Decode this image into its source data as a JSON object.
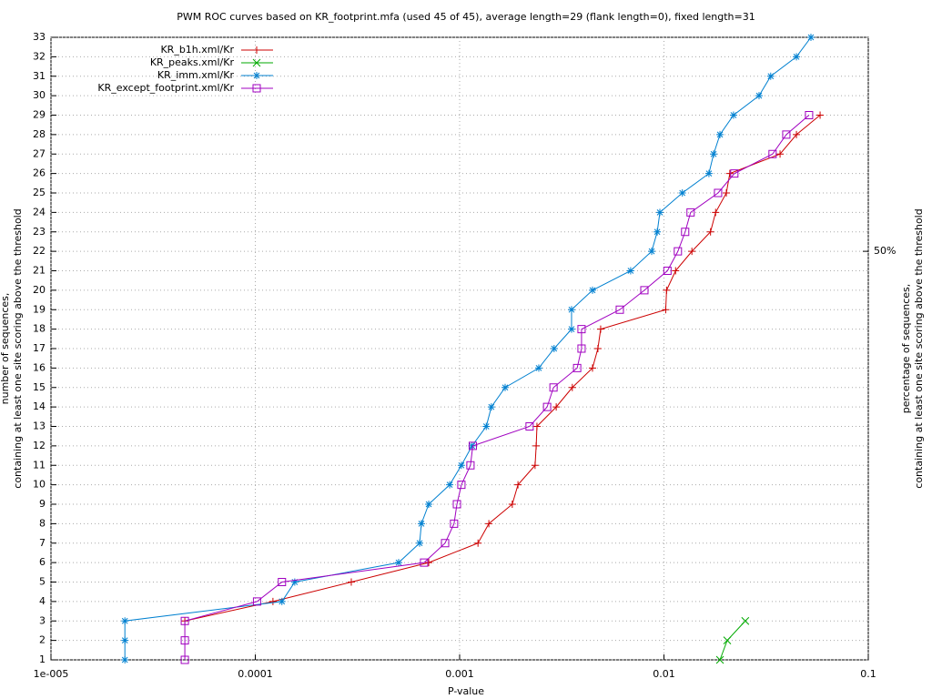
{
  "chart_data": {
    "type": "line",
    "title": "PWM ROC curves based on KR_footprint.mfa (used 45 of 45), average length=29 (flank length=0), fixed length=31",
    "xlabel": "P-value",
    "ylabel": [
      "number of sequences,",
      "containing at least one site scoring above the threshold"
    ],
    "y2label": [
      "percentage of sequences,",
      "containing at least one site scoring above the threshold"
    ],
    "xscale": "log",
    "grid": true,
    "legend": "upper left",
    "xlim": [
      1e-05,
      0.1
    ],
    "xticks": [
      {
        "value": 1e-05,
        "label": "1e-005"
      },
      0.0001,
      0.001,
      0.01,
      0.1
    ],
    "ylim": [
      1,
      33
    ],
    "yticks": [
      1,
      2,
      3,
      4,
      5,
      6,
      7,
      8,
      9,
      10,
      11,
      12,
      13,
      14,
      15,
      16,
      17,
      18,
      19,
      20,
      21,
      22,
      23,
      24,
      25,
      26,
      27,
      28,
      29,
      30,
      31,
      32,
      33
    ],
    "y2lim": [
      2.27,
      75
    ],
    "y2ticks": [
      {
        "value": 50,
        "label": "50%"
      }
    ],
    "series": [
      {
        "name": "KR_b1h.xml/Kr",
        "color": "#cc0000",
        "marker": "plus",
        "x": [
          4.52e-05,
          0.000122,
          0.000295,
          0.000706,
          0.00123,
          0.00139,
          0.00181,
          0.00193,
          0.00234,
          0.00237,
          0.00239,
          0.00297,
          0.00356,
          0.00447,
          0.00475,
          0.0049,
          0.0102,
          0.0103,
          0.0114,
          0.0137,
          0.0169,
          0.0179,
          0.0202,
          0.021,
          0.037,
          0.0445,
          0.0581
        ],
        "values": [
          3,
          4,
          5,
          6,
          7,
          8,
          9,
          10,
          11,
          12,
          13,
          14,
          15,
          16,
          17,
          18,
          19,
          20,
          21,
          22,
          23,
          24,
          25,
          26,
          27,
          28,
          29
        ]
      },
      {
        "name": "KR_peaks.xml/Kr",
        "color": "#00aa00",
        "marker": "cross",
        "x": [
          0.0188,
          0.0204,
          0.025
        ],
        "values": [
          1,
          2,
          3
        ]
      },
      {
        "name": "KR_imm.xml/Kr",
        "color": "#0080d0",
        "marker": "star",
        "x": [
          2.3e-05,
          2.3e-05,
          2.3e-05,
          0.000135,
          0.000156,
          0.000503,
          0.000637,
          0.00065,
          0.000706,
          0.000894,
          0.00102,
          0.00115,
          0.00135,
          0.00143,
          0.00167,
          0.00244,
          0.0029,
          0.00353,
          0.00353,
          0.00447,
          0.00687,
          0.00871,
          0.00927,
          0.00955,
          0.0123,
          0.0166,
          0.0175,
          0.0188,
          0.0219,
          0.0292,
          0.0333,
          0.0445,
          0.0524
        ],
        "values": [
          1,
          2,
          3,
          4,
          5,
          6,
          7,
          8,
          9,
          10,
          11,
          12,
          13,
          14,
          15,
          16,
          17,
          18,
          19,
          20,
          21,
          22,
          23,
          24,
          25,
          26,
          27,
          28,
          29,
          30,
          31,
          32,
          33
        ]
      },
      {
        "name": "KR_except_footprint.xml/Kr",
        "color": "#a000c0",
        "marker": "square",
        "x": [
          4.52e-05,
          4.52e-05,
          4.52e-05,
          0.000102,
          0.000135,
          0.00067,
          0.000849,
          0.000939,
          0.00097,
          0.00102,
          0.00113,
          0.00116,
          0.0022,
          0.00268,
          0.00288,
          0.00376,
          0.00395,
          0.00395,
          0.00608,
          0.00802,
          0.0104,
          0.0117,
          0.0127,
          0.0135,
          0.0184,
          0.0221,
          0.034,
          0.0397,
          0.0513
        ],
        "values": [
          1,
          2,
          3,
          4,
          5,
          6,
          7,
          8,
          9,
          10,
          11,
          12,
          13,
          14,
          15,
          16,
          17,
          18,
          19,
          20,
          21,
          22,
          23,
          24,
          25,
          26,
          27,
          28,
          29
        ]
      }
    ]
  }
}
